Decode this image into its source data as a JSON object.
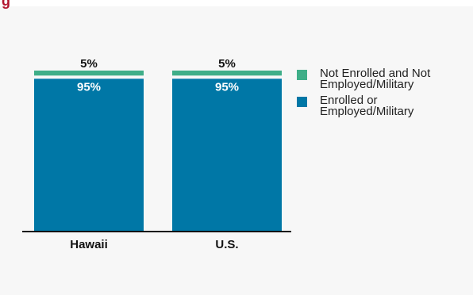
{
  "title_fragment": "g",
  "chart_data": {
    "type": "bar",
    "stacked": true,
    "categories": [
      "Hawaii",
      "U.S."
    ],
    "series": [
      {
        "name": "Enrolled or\nEmployed/Military",
        "values": [
          95,
          95
        ],
        "labels": [
          "95%",
          "95%"
        ],
        "color": "#0077a6"
      },
      {
        "name": "Not Enrolled and Not\nEmployed/Military",
        "values": [
          5,
          5
        ],
        "labels": [
          "5%",
          "5%"
        ],
        "color": "#3fae88"
      }
    ],
    "ylim": [
      0,
      100
    ],
    "legend_position": "right",
    "grid": false
  },
  "colors": {
    "accent": "#b2162f",
    "panel": "#f7f7f7"
  }
}
